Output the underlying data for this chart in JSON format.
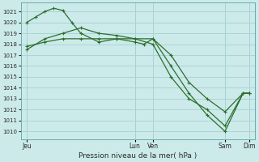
{
  "background_color": "#cceaea",
  "grid_color": "#aad4d4",
  "line_color": "#2d6e2d",
  "marker_color": "#2d6e2d",
  "title": "Pression niveau de la mer( hPa )",
  "ylabel_values": [
    1010,
    1011,
    1012,
    1013,
    1014,
    1015,
    1016,
    1017,
    1018,
    1019,
    1020,
    1021
  ],
  "ylim": [
    1009.3,
    1021.8
  ],
  "xlim": [
    -4,
    152
  ],
  "x_ticks": [
    0,
    72,
    84,
    132,
    148
  ],
  "x_tick_labels": [
    "Jeu",
    "Lun",
    "Ven",
    "Sam",
    "Dim"
  ],
  "series1_x": [
    0,
    6,
    12,
    18,
    24,
    30,
    36,
    48,
    60,
    72,
    78,
    84,
    96,
    108,
    120,
    132,
    144,
    148
  ],
  "series1_y": [
    1020.0,
    1020.5,
    1021.0,
    1021.3,
    1021.1,
    1020.0,
    1019.0,
    1018.2,
    1018.5,
    1018.2,
    1018.0,
    1018.5,
    1016.0,
    1013.5,
    1011.5,
    1010.0,
    1013.5,
    1013.5
  ],
  "series2_x": [
    0,
    12,
    24,
    36,
    48,
    60,
    72,
    84,
    96,
    108,
    120,
    132,
    144,
    148
  ],
  "series2_y": [
    1017.5,
    1018.5,
    1019.0,
    1019.5,
    1019.0,
    1018.8,
    1018.5,
    1018.5,
    1017.0,
    1014.5,
    1013.0,
    1011.8,
    1013.5,
    1013.5
  ],
  "series3_x": [
    0,
    12,
    24,
    36,
    48,
    60,
    72,
    84,
    96,
    108,
    120,
    132,
    144,
    148
  ],
  "series3_y": [
    1017.8,
    1018.2,
    1018.5,
    1018.5,
    1018.5,
    1018.5,
    1018.5,
    1018.0,
    1015.0,
    1013.0,
    1012.0,
    1010.5,
    1013.5,
    1013.5
  ]
}
